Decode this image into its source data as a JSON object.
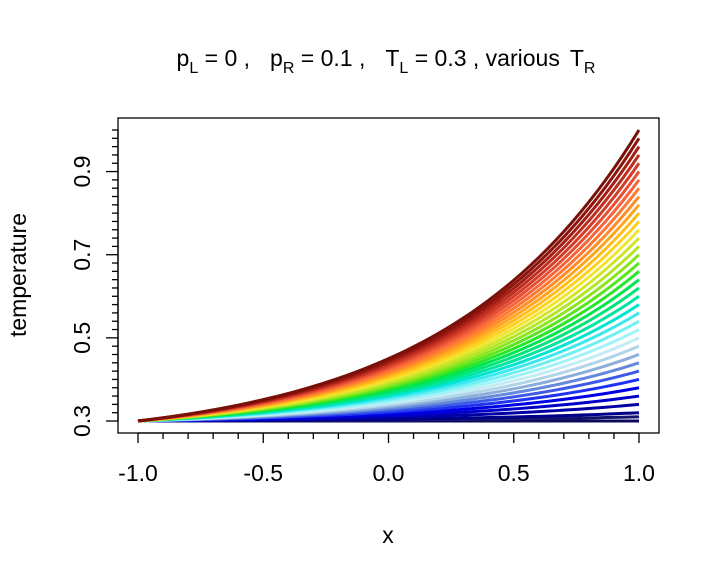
{
  "chart_data": {
    "type": "line",
    "title": {
      "pL_symbol": "p",
      "pL_sub": "L",
      "pL_value": " = 0 ,",
      "pR_symbol": "p",
      "pR_sub": "R",
      "pR_value": " = 0.1 ,",
      "TL_symbol": "T",
      "TL_sub": "L",
      "TL_value": " = 0.3 , various",
      "TR_symbol": "T",
      "TR_sub": "R"
    },
    "xlabel": "x",
    "ylabel": "temperature",
    "xlim": [
      -1.0,
      1.0
    ],
    "ylim": [
      0.28,
      1.01
    ],
    "x_ticks": [
      -1.0,
      -0.5,
      0.0,
      0.5,
      1.0
    ],
    "x_tick_labels": [
      "-1.0",
      "-0.5",
      "0.0",
      "0.5",
      "1.0"
    ],
    "y_major_ticks": [
      0.3,
      0.5,
      0.7,
      0.9
    ],
    "y_tick_labels": [
      "0.3",
      "0.5",
      "0.7",
      "0.9"
    ],
    "y_minor_step": 0.02,
    "x_minor_step": 0.1,
    "grid": false,
    "T_L": 0.3,
    "T_R_values": [
      0.3,
      0.31,
      0.32,
      0.34,
      0.36,
      0.38,
      0.4,
      0.42,
      0.44,
      0.46,
      0.48,
      0.5,
      0.52,
      0.54,
      0.56,
      0.58,
      0.6,
      0.62,
      0.64,
      0.66,
      0.68,
      0.7,
      0.72,
      0.74,
      0.76,
      0.78,
      0.8,
      0.82,
      0.84,
      0.86,
      0.88,
      0.9,
      0.92,
      0.94,
      0.96,
      0.98,
      1.0
    ],
    "series_colors": [
      "#0a0a5a",
      "#14146e",
      "#00008b",
      "#0000a5",
      "#0000c8",
      "#0000e6",
      "#1e32f0",
      "#3c5ae6",
      "#6488dc",
      "#8caedc",
      "#b0d4e8",
      "#c4ecf4",
      "#a0f4f8",
      "#70f0f4",
      "#3ce8f0",
      "#00e6d2",
      "#00e6a0",
      "#00e678",
      "#00e650",
      "#28e628",
      "#5ae61e",
      "#8ce61e",
      "#b4e628",
      "#d2e628",
      "#f0e632",
      "#ffd21e",
      "#ffbe1e",
      "#ffa51e",
      "#ff8c28",
      "#ff7832",
      "#f5643c",
      "#e65032",
      "#d23c28",
      "#be2d1e",
      "#a51e14",
      "#8c140f",
      "#781008"
    ],
    "series_note_x_samples": 60
  }
}
